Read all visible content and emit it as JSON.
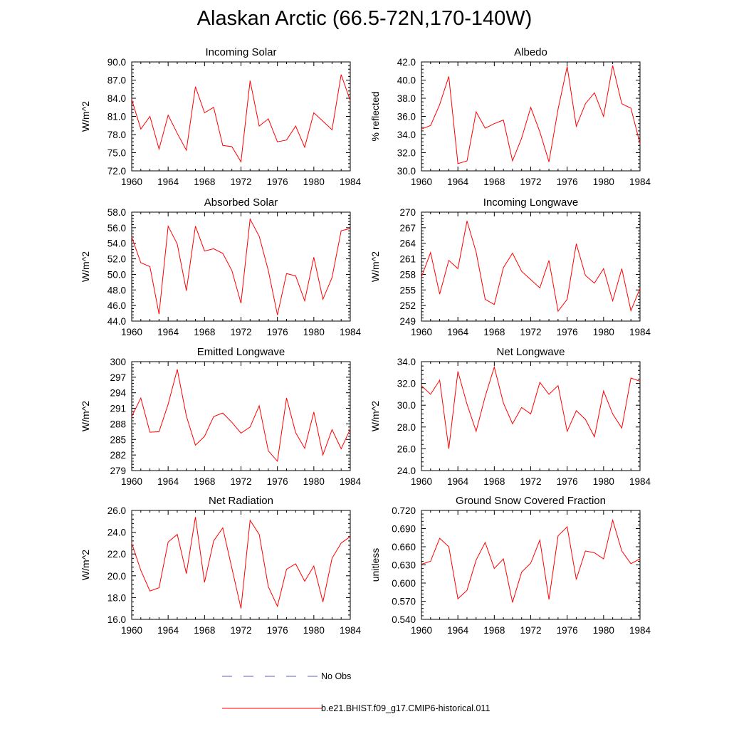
{
  "figure": {
    "title": "Alaskan Arctic (66.5-72N,170-140W)"
  },
  "chart_data": [
    {
      "type": "line",
      "title": "Incoming Solar",
      "ylabel": "W/m^2",
      "xlabel": "",
      "xlim": [
        1960,
        1984
      ],
      "ylim": [
        72.0,
        90.0
      ],
      "x_ticks": [
        1960,
        1964,
        1968,
        1972,
        1976,
        1980,
        1984
      ],
      "y_ticks": [
        "72.0",
        "75.0",
        "78.0",
        "81.0",
        "84.0",
        "87.0",
        "90.0"
      ],
      "x": [
        1960,
        1961,
        1962,
        1963,
        1964,
        1965,
        1966,
        1967,
        1968,
        1969,
        1970,
        1971,
        1972,
        1973,
        1974,
        1975,
        1976,
        1977,
        1978,
        1979,
        1980,
        1981,
        1982,
        1983,
        1984
      ],
      "series": [
        {
          "name": "b.e21.BHIST.f09_g17.CMIP6-historical.011",
          "color": "#ff0000",
          "values": [
            83.8,
            78.9,
            81.0,
            75.6,
            81.2,
            78.2,
            75.4,
            85.9,
            81.6,
            82.5,
            76.2,
            76.0,
            73.5,
            86.9,
            79.4,
            80.6,
            76.8,
            77.1,
            79.4,
            75.9,
            81.6,
            80.2,
            78.8,
            87.9,
            83.6
          ]
        }
      ]
    },
    {
      "type": "line",
      "title": "Albedo",
      "ylabel": "% reflected",
      "xlabel": "",
      "xlim": [
        1960,
        1984
      ],
      "ylim": [
        30.0,
        42.0
      ],
      "x_ticks": [
        1960,
        1964,
        1968,
        1972,
        1976,
        1980,
        1984
      ],
      "y_ticks": [
        "30.0",
        "32.0",
        "34.0",
        "36.0",
        "38.0",
        "40.0",
        "42.0"
      ],
      "x": [
        1960,
        1961,
        1962,
        1963,
        1964,
        1965,
        1966,
        1967,
        1968,
        1969,
        1970,
        1971,
        1972,
        1973,
        1974,
        1975,
        1976,
        1977,
        1978,
        1979,
        1980,
        1981,
        1982,
        1983,
        1984
      ],
      "series": [
        {
          "name": "b.e21.BHIST.f09_g17.CMIP6-historical.011",
          "color": "#ff0000",
          "values": [
            34.6,
            35.0,
            37.3,
            40.4,
            30.8,
            31.1,
            36.5,
            34.7,
            35.2,
            35.6,
            31.1,
            33.6,
            37.0,
            34.3,
            31.0,
            36.8,
            41.5,
            34.9,
            37.4,
            38.6,
            36.0,
            41.6,
            37.4,
            36.9,
            33.0
          ]
        }
      ]
    },
    {
      "type": "line",
      "title": "Absorbed Solar",
      "ylabel": "W/m^2",
      "xlabel": "",
      "xlim": [
        1960,
        1984
      ],
      "ylim": [
        44.0,
        58.0
      ],
      "x_ticks": [
        1960,
        1964,
        1968,
        1972,
        1976,
        1980,
        1984
      ],
      "y_ticks": [
        "44.0",
        "46.0",
        "48.0",
        "50.0",
        "52.0",
        "54.0",
        "56.0",
        "58.0"
      ],
      "x": [
        1960,
        1961,
        1962,
        1963,
        1964,
        1965,
        1966,
        1967,
        1968,
        1969,
        1970,
        1971,
        1972,
        1973,
        1974,
        1975,
        1976,
        1977,
        1978,
        1979,
        1980,
        1981,
        1982,
        1983,
        1984
      ],
      "series": [
        {
          "name": "b.e21.BHIST.f09_g17.CMIP6-historical.011",
          "color": "#ff0000",
          "values": [
            54.8,
            51.5,
            51.0,
            44.9,
            56.2,
            53.9,
            47.9,
            56.2,
            53.0,
            53.3,
            52.7,
            50.5,
            46.3,
            57.1,
            54.9,
            50.5,
            44.8,
            50.1,
            49.8,
            46.6,
            52.2,
            46.8,
            49.6,
            55.6,
            55.9
          ]
        }
      ]
    },
    {
      "type": "line",
      "title": "Incoming Longwave",
      "ylabel": "W/m^2",
      "xlabel": "",
      "xlim": [
        1960,
        1984
      ],
      "ylim": [
        249,
        270
      ],
      "x_ticks": [
        1960,
        1964,
        1968,
        1972,
        1976,
        1980,
        1984
      ],
      "y_ticks": [
        "249",
        "252",
        "255",
        "258",
        "261",
        "264",
        "267",
        "270"
      ],
      "x": [
        1960,
        1961,
        1962,
        1963,
        1964,
        1965,
        1966,
        1967,
        1968,
        1969,
        1970,
        1971,
        1972,
        1973,
        1974,
        1975,
        1976,
        1977,
        1978,
        1979,
        1980,
        1981,
        1982,
        1983,
        1984
      ],
      "series": [
        {
          "name": "b.e21.BHIST.f09_g17.CMIP6-historical.011",
          "color": "#ff0000",
          "values": [
            257.5,
            262.2,
            254.2,
            260.7,
            259.1,
            268.3,
            262.3,
            253.2,
            252.2,
            259.3,
            262.1,
            258.6,
            257.0,
            255.4,
            260.7,
            250.9,
            253.2,
            263.9,
            257.8,
            256.3,
            259.1,
            252.9,
            259.1,
            251.0,
            255.3
          ]
        }
      ]
    },
    {
      "type": "line",
      "title": "Emitted Longwave",
      "ylabel": "W/m^2",
      "xlabel": "",
      "xlim": [
        1960,
        1984
      ],
      "ylim": [
        279,
        300
      ],
      "x_ticks": [
        1960,
        1964,
        1968,
        1972,
        1976,
        1980,
        1984
      ],
      "y_ticks": [
        "279",
        "282",
        "285",
        "288",
        "291",
        "294",
        "297",
        "300"
      ],
      "x": [
        1960,
        1961,
        1962,
        1963,
        1964,
        1965,
        1966,
        1967,
        1968,
        1969,
        1970,
        1971,
        1972,
        1973,
        1974,
        1975,
        1976,
        1977,
        1978,
        1979,
        1980,
        1981,
        1982,
        1983,
        1984
      ],
      "series": [
        {
          "name": "b.e21.BHIST.f09_g17.CMIP6-historical.011",
          "color": "#ff0000",
          "values": [
            289.4,
            293.0,
            286.4,
            286.5,
            291.8,
            298.5,
            289.5,
            283.9,
            285.6,
            289.4,
            290.1,
            288.3,
            286.2,
            287.4,
            291.5,
            282.8,
            280.8,
            293.0,
            286.3,
            283.3,
            290.3,
            282.0,
            286.9,
            283.2,
            287.0
          ]
        }
      ]
    },
    {
      "type": "line",
      "title": "Net Longwave",
      "ylabel": "W/m^2",
      "xlabel": "",
      "xlim": [
        1960,
        1984
      ],
      "ylim": [
        24.0,
        34.0
      ],
      "x_ticks": [
        1960,
        1964,
        1968,
        1972,
        1976,
        1980,
        1984
      ],
      "y_ticks": [
        "24.0",
        "26.0",
        "28.0",
        "30.0",
        "32.0",
        "34.0"
      ],
      "x": [
        1960,
        1961,
        1962,
        1963,
        1964,
        1965,
        1966,
        1967,
        1968,
        1969,
        1970,
        1971,
        1972,
        1973,
        1974,
        1975,
        1976,
        1977,
        1978,
        1979,
        1980,
        1981,
        1982,
        1983,
        1984
      ],
      "series": [
        {
          "name": "b.e21.BHIST.f09_g17.CMIP6-historical.011",
          "color": "#ff0000",
          "values": [
            31.8,
            31.0,
            32.3,
            26.0,
            33.1,
            30.1,
            27.6,
            30.8,
            33.5,
            30.2,
            28.3,
            29.8,
            29.2,
            32.1,
            31.0,
            31.8,
            27.6,
            29.5,
            28.7,
            27.1,
            31.3,
            29.2,
            27.9,
            32.5,
            32.2
          ]
        }
      ]
    },
    {
      "type": "line",
      "title": "Net Radiation",
      "ylabel": "W/m^2",
      "xlabel": "",
      "xlim": [
        1960,
        1984
      ],
      "ylim": [
        16.0,
        26.0
      ],
      "x_ticks": [
        1960,
        1964,
        1968,
        1972,
        1976,
        1980,
        1984
      ],
      "y_ticks": [
        "16.0",
        "18.0",
        "20.0",
        "22.0",
        "24.0",
        "26.0"
      ],
      "x": [
        1960,
        1961,
        1962,
        1963,
        1964,
        1965,
        1966,
        1967,
        1968,
        1969,
        1970,
        1971,
        1972,
        1973,
        1974,
        1975,
        1976,
        1977,
        1978,
        1979,
        1980,
        1981,
        1982,
        1983,
        1984
      ],
      "series": [
        {
          "name": "b.e21.BHIST.f09_g17.CMIP6-historical.011",
          "color": "#ff0000",
          "values": [
            23.0,
            20.5,
            18.6,
            18.9,
            23.1,
            23.8,
            20.2,
            25.4,
            19.4,
            23.2,
            24.4,
            20.7,
            17.0,
            25.1,
            23.8,
            19.0,
            17.2,
            20.6,
            21.1,
            19.5,
            20.9,
            17.6,
            21.6,
            23.0,
            23.6
          ]
        }
      ]
    },
    {
      "type": "line",
      "title": "Ground Snow Covered Fraction",
      "ylabel": "unitless",
      "xlabel": "",
      "xlim": [
        1960,
        1984
      ],
      "ylim": [
        0.54,
        0.72
      ],
      "x_ticks": [
        1960,
        1964,
        1968,
        1972,
        1976,
        1980,
        1984
      ],
      "y_ticks": [
        "0.540",
        "0.570",
        "0.600",
        "0.630",
        "0.660",
        "0.690",
        "0.720"
      ],
      "x": [
        1960,
        1961,
        1962,
        1963,
        1964,
        1965,
        1966,
        1967,
        1968,
        1969,
        1970,
        1971,
        1972,
        1973,
        1974,
        1975,
        1976,
        1977,
        1978,
        1979,
        1980,
        1981,
        1982,
        1983,
        1984
      ],
      "series": [
        {
          "name": "b.e21.BHIST.f09_g17.CMIP6-historical.011",
          "color": "#ff0000",
          "values": [
            0.631,
            0.636,
            0.674,
            0.66,
            0.574,
            0.588,
            0.638,
            0.667,
            0.624,
            0.64,
            0.568,
            0.618,
            0.633,
            0.671,
            0.573,
            0.678,
            0.693,
            0.606,
            0.653,
            0.65,
            0.64,
            0.704,
            0.653,
            0.632,
            0.64
          ]
        }
      ]
    }
  ],
  "legend": {
    "items": [
      {
        "label": "No Obs",
        "color": "#5d5dc6",
        "style": "dashed"
      },
      {
        "label": "b.e21.BHIST.f09_g17.CMIP6-historical.011",
        "color": "#ff0000",
        "style": "solid"
      }
    ]
  }
}
